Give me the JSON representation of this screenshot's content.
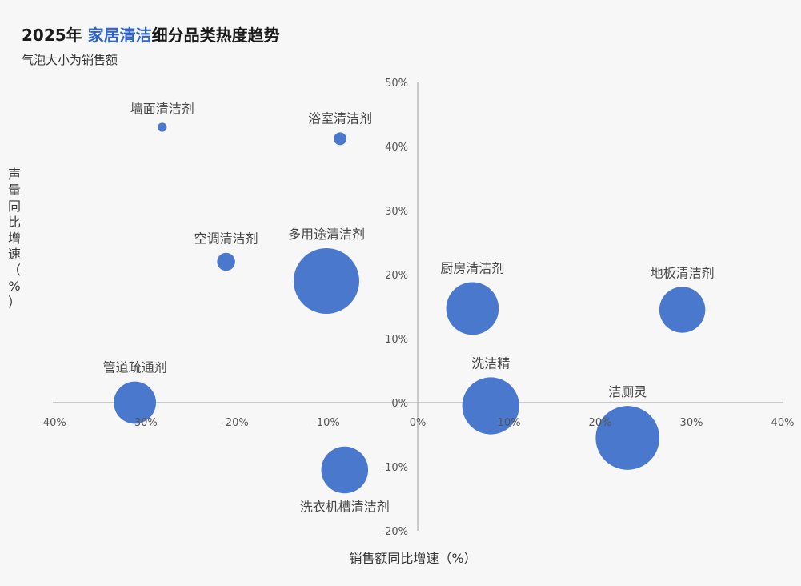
{
  "header": {
    "title_prefix": "2025年 ",
    "title_accent": "家居清洁",
    "title_suffix": "细分品类热度趋势",
    "subtitle": "气泡大小为销售额"
  },
  "colors": {
    "bubble": "#4a78cc",
    "accent": "#2f63c9",
    "axis": "#bbbbbb"
  },
  "chart_data": {
    "type": "scatter",
    "xlabel": "销售额同比增速（%）",
    "ylabel": "声量同比增速（%）",
    "xlim": [
      -40,
      40
    ],
    "ylim": [
      -20,
      50
    ],
    "x_ticks": [
      -40,
      -30,
      -20,
      -10,
      0,
      10,
      20,
      30,
      40
    ],
    "y_ticks": [
      -20,
      -10,
      0,
      10,
      20,
      30,
      40,
      50
    ],
    "x_tick_labels": [
      "-40%",
      "-30%",
      "-20%",
      "-10%",
      "0%",
      "10%",
      "20%",
      "30%",
      "40%"
    ],
    "y_tick_labels": [
      "-20%",
      "-10%",
      "0%",
      "10%",
      "20%",
      "30%",
      "40%",
      "50%"
    ],
    "grid": false,
    "points": [
      {
        "label": "墙面清洁剂",
        "x": -28,
        "y": 43,
        "size": 1
      },
      {
        "label": "浴室清洁剂",
        "x": -8.5,
        "y": 41.2,
        "size": 2
      },
      {
        "label": "空调清洁剂",
        "x": -21,
        "y": 22,
        "size": 4
      },
      {
        "label": "多用途清洁剂",
        "x": -10,
        "y": 19,
        "size": 53
      },
      {
        "label": "厨房清洁剂",
        "x": 6,
        "y": 14.7,
        "size": 34
      },
      {
        "label": "地板清洁剂",
        "x": 29,
        "y": 14.5,
        "size": 26
      },
      {
        "label": "管道疏通剂",
        "x": -31,
        "y": 0,
        "size": 22
      },
      {
        "label": "洗洁精",
        "x": 8,
        "y": -0.5,
        "size": 40
      },
      {
        "label": "洁厕灵",
        "x": 23,
        "y": -5.5,
        "size": 50
      },
      {
        "label": "洗衣机槽清洁剂",
        "x": -8,
        "y": -10.5,
        "size": 27
      }
    ]
  }
}
